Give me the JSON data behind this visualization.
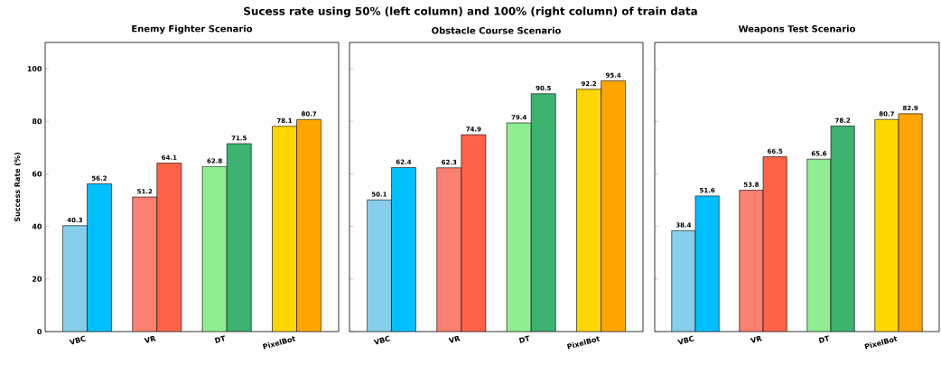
{
  "chart_data": [
    {
      "type": "bar",
      "title": "Enemy Fighter Scenario",
      "ylabel": "Success Rate (%)",
      "annotations": [
        "Sucess rate using 50% (left column) and 100% (right column) of train data"
      ],
      "categories": [
        "VBC",
        "VR",
        "DT",
        "PixelBot"
      ],
      "series": [
        {
          "colors": [
            "#87ceeb",
            "#fa8072",
            "#90ee90",
            "#ffd700"
          ],
          "values": [
            40.3,
            51.2,
            62.8,
            78.1
          ]
        },
        {
          "colors": [
            "#00bfff",
            "#ff6347",
            "#3cb371",
            "#ffa500"
          ],
          "values": [
            56.2,
            64.1,
            71.5,
            80.7
          ]
        }
      ],
      "ylim": [
        0,
        110
      ],
      "yticks": [
        0,
        20,
        40,
        60,
        80,
        100
      ],
      "data_labels": true
    },
    {
      "type": "bar",
      "title": "Obstacle Course Scenario",
      "categories": [
        "VBC",
        "VR",
        "DT",
        "PixelBot"
      ],
      "series": [
        {
          "colors": [
            "#87ceeb",
            "#fa8072",
            "#90ee90",
            "#ffd700"
          ],
          "values": [
            50.1,
            62.3,
            79.4,
            92.2
          ]
        },
        {
          "colors": [
            "#00bfff",
            "#ff6347",
            "#3cb371",
            "#ffa500"
          ],
          "values": [
            62.4,
            74.9,
            90.5,
            95.4
          ]
        }
      ],
      "ylim": [
        0,
        110
      ],
      "yticks": [
        0,
        20,
        40,
        60,
        80,
        100
      ],
      "data_labels": true,
      "tick_labels": "x"
    },
    {
      "type": "bar",
      "title": "Weapons Test Scenario",
      "categories": [
        "VBC",
        "VR",
        "DT",
        "PixelBot"
      ],
      "series": [
        {
          "colors": [
            "#87ceeb",
            "#fa8072",
            "#90ee90",
            "#ffd700"
          ],
          "values": [
            38.4,
            53.8,
            65.6,
            80.7
          ]
        },
        {
          "colors": [
            "#00bfff",
            "#ff6347",
            "#3cb371",
            "#ffa500"
          ],
          "values": [
            51.6,
            66.5,
            78.2,
            82.9
          ]
        }
      ],
      "ylim": [
        0,
        110
      ],
      "yticks": [
        0,
        20,
        40,
        60,
        80,
        100
      ],
      "data_labels": true,
      "tick_labels": "x"
    }
  ]
}
